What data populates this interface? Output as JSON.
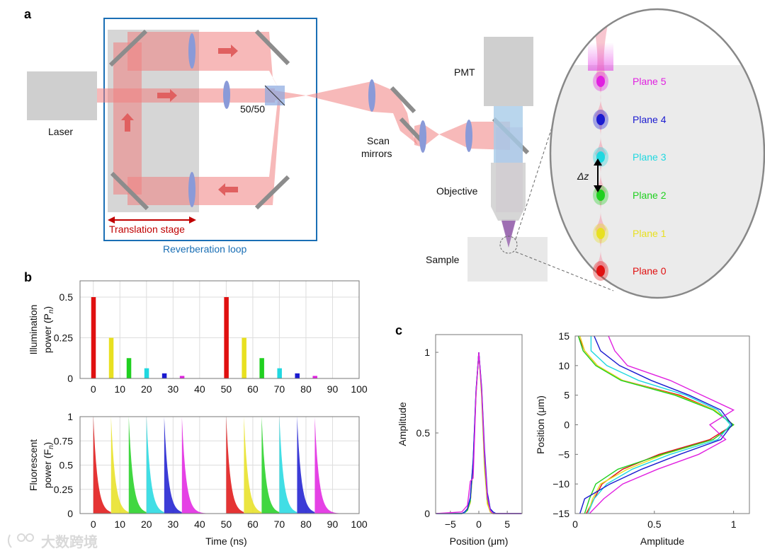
{
  "panel_a": {
    "letter": "a",
    "laser_label": "Laser",
    "splitter_label": "50/50",
    "scan_label_1": "Scan",
    "scan_label_2": "mirrors",
    "pmt_label": "PMT",
    "objective_label": "Objective",
    "sample_label": "Sample",
    "stage_label": "Translation stage",
    "loop_label": "Reverberation loop",
    "dz_label": "Δz",
    "planes": [
      {
        "label": "Plane 5",
        "color": "#e020e0"
      },
      {
        "label": "Plane 4",
        "color": "#1a1ad0"
      },
      {
        "label": "Plane 3",
        "color": "#20d8e0"
      },
      {
        "label": "Plane 2",
        "color": "#20d020"
      },
      {
        "label": "Plane 1",
        "color": "#e8e020"
      },
      {
        "label": "Plane 0",
        "color": "#e01010"
      }
    ],
    "colors": {
      "loop": "#1a6fb5",
      "stage": "#c00000",
      "beam": "#f4a0a0"
    }
  },
  "panel_b": {
    "letter": "b"
  },
  "panel_c": {
    "letter": "c"
  },
  "watermark": "大数跨境",
  "chart_data": [
    {
      "id": "illumination",
      "type": "bar",
      "title": "",
      "xlabel": "",
      "ylabel": "Illumination power (Pn)",
      "ylabel_main": "Illumination",
      "ylabel_sub": "power (P",
      "ylabel_subscript": "n",
      "xlim": [
        -5,
        100
      ],
      "ylim": [
        0,
        0.6
      ],
      "xticks": [
        "0",
        "10",
        "20",
        "30",
        "40",
        "50",
        "60",
        "70",
        "80",
        "90",
        "100"
      ],
      "yticks": [
        "0",
        "0.25",
        "0.5"
      ],
      "grid": true,
      "x": [
        0,
        6.67,
        13.33,
        20,
        26.67,
        33.33,
        50,
        56.67,
        63.33,
        70,
        76.67,
        83.33
      ],
      "values": [
        0.5,
        0.25,
        0.125,
        0.0625,
        0.03125,
        0.0156,
        0.5,
        0.25,
        0.125,
        0.0625,
        0.03125,
        0.0156
      ],
      "colors": [
        "#e01010",
        "#e8e020",
        "#20d020",
        "#20d8e0",
        "#1a1ad0",
        "#e020e0",
        "#e01010",
        "#e8e020",
        "#20d020",
        "#20d8e0",
        "#1a1ad0",
        "#e020e0"
      ]
    },
    {
      "id": "fluorescence",
      "type": "area",
      "xlabel": "Time (ns)",
      "ylabel": "Fluorescent power (Fn)",
      "ylabel_main": "Fluorescent",
      "ylabel_sub": "power (F",
      "ylabel_subscript": "n",
      "xlim": [
        -5,
        100
      ],
      "ylim": [
        0,
        1
      ],
      "xticks": [
        "0",
        "10",
        "20",
        "30",
        "40",
        "50",
        "60",
        "70",
        "80",
        "90",
        "100"
      ],
      "yticks": [
        "0",
        "0.25",
        "0.5",
        "0.75",
        "1"
      ],
      "grid": true,
      "pulse_times": [
        0,
        6.67,
        13.33,
        20,
        26.67,
        33.33,
        50,
        56.67,
        63.33,
        70,
        76.67,
        83.33
      ],
      "peak": 1,
      "decay_tau_ns": 1.6,
      "colors": [
        "#e01010",
        "#e8e020",
        "#20d020",
        "#20d8e0",
        "#1a1ad0",
        "#e020e0",
        "#e01010",
        "#e8e020",
        "#20d020",
        "#20d8e0",
        "#1a1ad0",
        "#e020e0"
      ]
    },
    {
      "id": "lateral-psf",
      "type": "line",
      "xlabel": "Position (μm)",
      "ylabel": "Amplitude",
      "xlim": [
        -7.6,
        7.6
      ],
      "ylim": [
        0,
        1.11
      ],
      "xticks": [
        {
          "v": -5,
          "label": "−5"
        },
        {
          "v": 0,
          "label": "0"
        },
        {
          "v": 5,
          "label": "5"
        }
      ],
      "yticks": [
        {
          "v": 0,
          "label": "0"
        },
        {
          "v": 0.5,
          "label": "0.5"
        },
        {
          "v": 1,
          "label": "1"
        }
      ],
      "grid": false,
      "x": [
        -7.5,
        -3,
        -2.5,
        -2,
        -1.5,
        -1,
        -0.5,
        0,
        0.5,
        1,
        1.5,
        2,
        2.5,
        3,
        7.5
      ],
      "series": [
        {
          "name": "Plane 0",
          "color": "#e01010",
          "values": [
            0,
            0,
            0.005,
            0.02,
            0.07,
            0.31,
            0.74,
            1,
            0.74,
            0.31,
            0.07,
            0.01,
            0,
            0,
            0
          ]
        },
        {
          "name": "Plane 1",
          "color": "#e8e020",
          "values": [
            0,
            0,
            0.005,
            0.02,
            0.07,
            0.3,
            0.73,
            1,
            0.72,
            0.28,
            0.06,
            0.01,
            0,
            0,
            0
          ]
        },
        {
          "name": "Plane 2",
          "color": "#20d020",
          "values": [
            0,
            0,
            0.005,
            0.02,
            0.08,
            0.32,
            0.75,
            1,
            0.75,
            0.33,
            0.09,
            0.02,
            0,
            0,
            0
          ]
        },
        {
          "name": "Plane 3",
          "color": "#20d8e0",
          "values": [
            0,
            0,
            0.005,
            0.03,
            0.09,
            0.33,
            0.75,
            1,
            0.77,
            0.37,
            0.11,
            0.03,
            0.01,
            0,
            0
          ]
        },
        {
          "name": "Plane 4",
          "color": "#1a1ad0",
          "values": [
            0,
            0,
            0.01,
            0.03,
            0.1,
            0.33,
            0.76,
            1,
            0.78,
            0.4,
            0.13,
            0.03,
            0.01,
            0,
            0
          ]
        },
        {
          "name": "Plane 5",
          "color": "#e020e0",
          "values": [
            0,
            0.01,
            0.03,
            0.05,
            0.2,
            0.22,
            0.74,
            1,
            0.76,
            0.36,
            0.1,
            0.02,
            0,
            0,
            0
          ]
        }
      ]
    },
    {
      "id": "axial-psf",
      "type": "line",
      "orientation": "vertical",
      "xlabel": "Amplitude",
      "ylabel": "Position (μm)",
      "xlim": [
        0,
        1.1
      ],
      "ylim": [
        -15,
        15
      ],
      "xticks": [
        {
          "v": 0,
          "label": "0"
        },
        {
          "v": 0.5,
          "label": "0.5"
        },
        {
          "v": 1,
          "label": "1"
        }
      ],
      "yticks": [
        {
          "v": -15,
          "label": "−15"
        },
        {
          "v": -10,
          "label": "−10"
        },
        {
          "v": -5,
          "label": "−5"
        },
        {
          "v": 0,
          "label": "0"
        },
        {
          "v": 5,
          "label": "5"
        },
        {
          "v": 10,
          "label": "10"
        },
        {
          "v": 15,
          "label": "15"
        }
      ],
      "grid": false,
      "y": [
        -15,
        -12.5,
        -10,
        -7.5,
        -5,
        -2.5,
        0,
        2.5,
        5,
        7.5,
        10,
        12.5,
        15
      ],
      "series": [
        {
          "name": "Plane 0",
          "color": "#e01010",
          "values": [
            0.07,
            0.12,
            0.17,
            0.3,
            0.53,
            0.85,
            1.0,
            0.88,
            0.66,
            0.3,
            0.14,
            0.06,
            0.02
          ]
        },
        {
          "name": "Plane 1",
          "color": "#e8e020",
          "values": [
            0.08,
            0.11,
            0.16,
            0.33,
            0.56,
            0.87,
            1.0,
            0.88,
            0.64,
            0.3,
            0.14,
            0.06,
            0.03
          ]
        },
        {
          "name": "Plane 2",
          "color": "#20d020",
          "values": [
            0.06,
            0.09,
            0.13,
            0.27,
            0.55,
            0.87,
            1.0,
            0.87,
            0.63,
            0.29,
            0.13,
            0.05,
            0.02
          ]
        },
        {
          "name": "Plane 3",
          "color": "#20d8e0",
          "values": [
            0.08,
            0.12,
            0.2,
            0.36,
            0.6,
            0.9,
            0.98,
            0.9,
            0.7,
            0.4,
            0.2,
            0.1,
            0.1
          ]
        },
        {
          "name": "Plane 4",
          "color": "#1a1ad0",
          "values": [
            0.03,
            0.06,
            0.22,
            0.42,
            0.66,
            0.92,
            0.99,
            0.92,
            0.72,
            0.48,
            0.28,
            0.16,
            0.12
          ]
        },
        {
          "name": "Plane 5",
          "color": "#e020e0",
          "values": [
            0.09,
            0.18,
            0.3,
            0.52,
            0.78,
            0.95,
            0.85,
            1.0,
            0.8,
            0.6,
            0.33,
            0.25,
            0.21
          ]
        }
      ]
    }
  ]
}
